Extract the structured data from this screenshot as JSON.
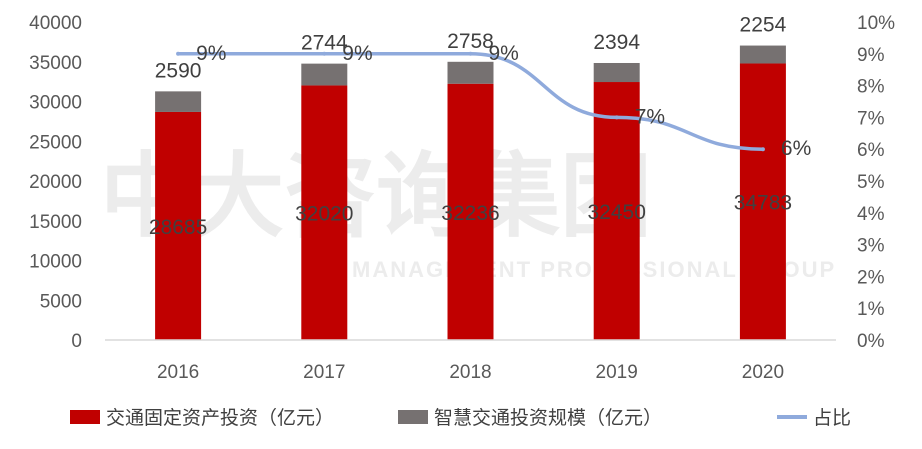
{
  "chart_data": {
    "type": "bar",
    "stacked": true,
    "categories": [
      "2016",
      "2017",
      "2018",
      "2019",
      "2020"
    ],
    "series": [
      {
        "name": "交通固定资产投资（亿元）",
        "values": [
          28685,
          32020,
          32236,
          32450,
          34783
        ],
        "color": "#c00000",
        "axis": "left"
      },
      {
        "name": "智慧交通投资规模（亿元）",
        "values": [
          2590,
          2744,
          2758,
          2394,
          2254
        ],
        "color": "#767171",
        "axis": "left"
      },
      {
        "name": "占比",
        "type": "line",
        "values": [
          9,
          9,
          9,
          7,
          6
        ],
        "labels": [
          "9%",
          "9%",
          "9%",
          "7%",
          "6%"
        ],
        "color": "#8faadc",
        "axis": "right"
      }
    ],
    "y_left": {
      "min": 0,
      "max": 40000,
      "step": 5000,
      "ticks": [
        "0",
        "5000",
        "10000",
        "15000",
        "20000",
        "25000",
        "30000",
        "35000",
        "40000"
      ]
    },
    "y_right": {
      "min": 0,
      "max": 10,
      "step": 1,
      "ticks": [
        "0%",
        "1%",
        "2%",
        "3%",
        "4%",
        "5%",
        "6%",
        "7%",
        "8%",
        "9%",
        "10%"
      ]
    },
    "legend_position": "bottom",
    "grid": false
  },
  "watermark": {
    "main": "中大咨询集团",
    "sub": "MANAGEMENT PROFESSIONAL GROUP"
  },
  "colors": {
    "axis": "#d9d9d9"
  }
}
